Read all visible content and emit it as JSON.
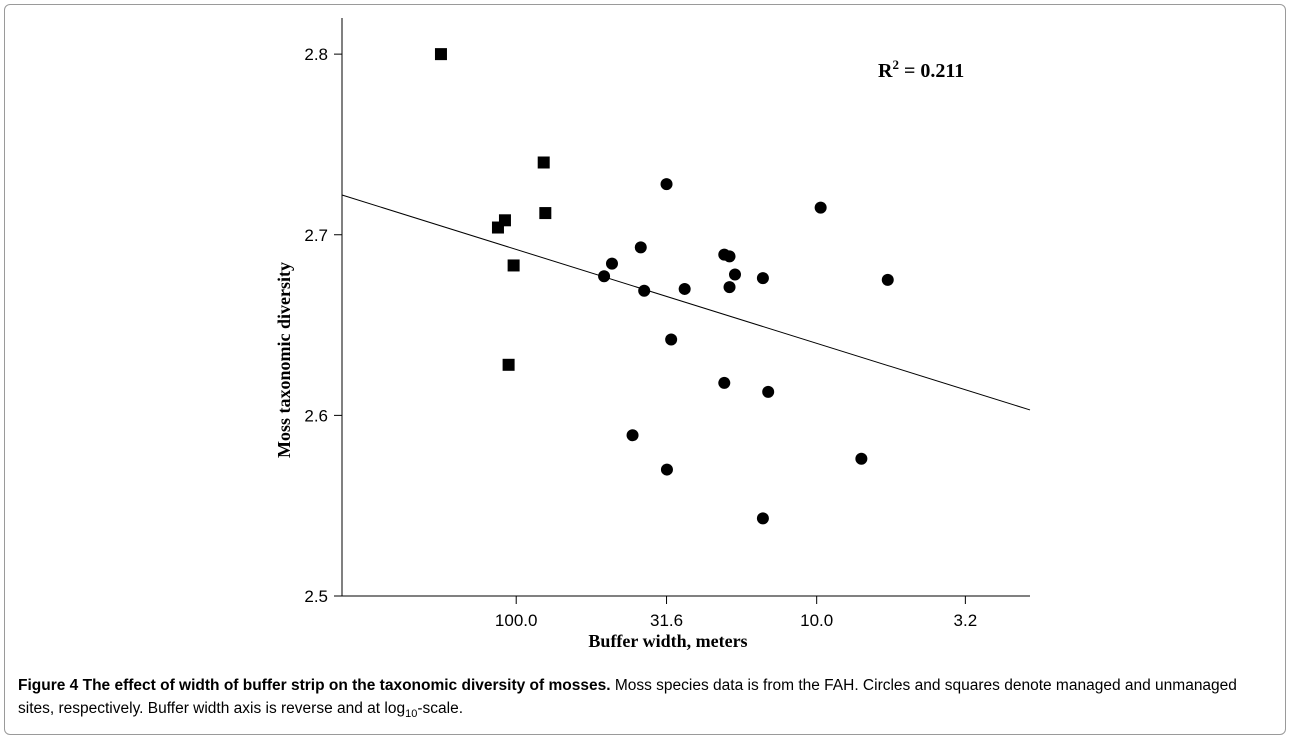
{
  "chart_data": {
    "type": "scatter",
    "title": "",
    "xlabel": "Buffer width, meters",
    "ylabel": "Moss taxonomic diversity",
    "x_scale": "log10",
    "x_reversed": true,
    "x_ticks": [
      {
        "value": 100.0,
        "label": "100.0"
      },
      {
        "value": 31.6,
        "label": "31.6"
      },
      {
        "value": 10.0,
        "label": "10.0"
      },
      {
        "value": 3.2,
        "label": "3.2"
      }
    ],
    "xlim": [
      380,
      1.95
    ],
    "ylim": [
      2.5,
      2.82
    ],
    "y_ticks": [
      {
        "value": 2.5,
        "label": "2.5"
      },
      {
        "value": 2.6,
        "label": "2.6"
      },
      {
        "value": 2.7,
        "label": "2.7"
      },
      {
        "value": 2.8,
        "label": "2.8"
      }
    ],
    "annotation": {
      "base": "R",
      "sup": "2",
      "rest": " = 0.211"
    },
    "series": [
      {
        "marker": "square",
        "points": [
          {
            "x": 178,
            "y": 2.8
          },
          {
            "x": 115,
            "y": 2.704
          },
          {
            "x": 109,
            "y": 2.708
          },
          {
            "x": 102,
            "y": 2.683
          },
          {
            "x": 81,
            "y": 2.74
          },
          {
            "x": 80,
            "y": 2.712
          },
          {
            "x": 106,
            "y": 2.628
          }
        ]
      },
      {
        "marker": "circle",
        "points": [
          {
            "x": 51,
            "y": 2.677
          },
          {
            "x": 48,
            "y": 2.684
          },
          {
            "x": 38.5,
            "y": 2.693
          },
          {
            "x": 37.5,
            "y": 2.669
          },
          {
            "x": 41,
            "y": 2.589
          },
          {
            "x": 31.6,
            "y": 2.728
          },
          {
            "x": 31.5,
            "y": 2.57
          },
          {
            "x": 30.5,
            "y": 2.642
          },
          {
            "x": 27.5,
            "y": 2.67
          },
          {
            "x": 20.3,
            "y": 2.689
          },
          {
            "x": 19.5,
            "y": 2.688
          },
          {
            "x": 19.5,
            "y": 2.671
          },
          {
            "x": 18.7,
            "y": 2.678
          },
          {
            "x": 20.3,
            "y": 2.618
          },
          {
            "x": 15.1,
            "y": 2.676
          },
          {
            "x": 14.5,
            "y": 2.613
          },
          {
            "x": 15.1,
            "y": 2.543
          },
          {
            "x": 9.7,
            "y": 2.715
          },
          {
            "x": 7.1,
            "y": 2.576
          },
          {
            "x": 5.8,
            "y": 2.675
          }
        ]
      }
    ],
    "regression": {
      "x": [
        380,
        1.95
      ],
      "y": [
        2.722,
        2.603
      ]
    }
  },
  "caption": {
    "lead": "Figure 4 The effect of width of buffer strip on the taxonomic diversity of mosses.",
    "body": "Moss species data is from the FAH. Circles and squares denote managed and unmanaged sites, respectively. Buffer width axis is reverse and at log",
    "sub": "10",
    "tail": "-scale."
  }
}
